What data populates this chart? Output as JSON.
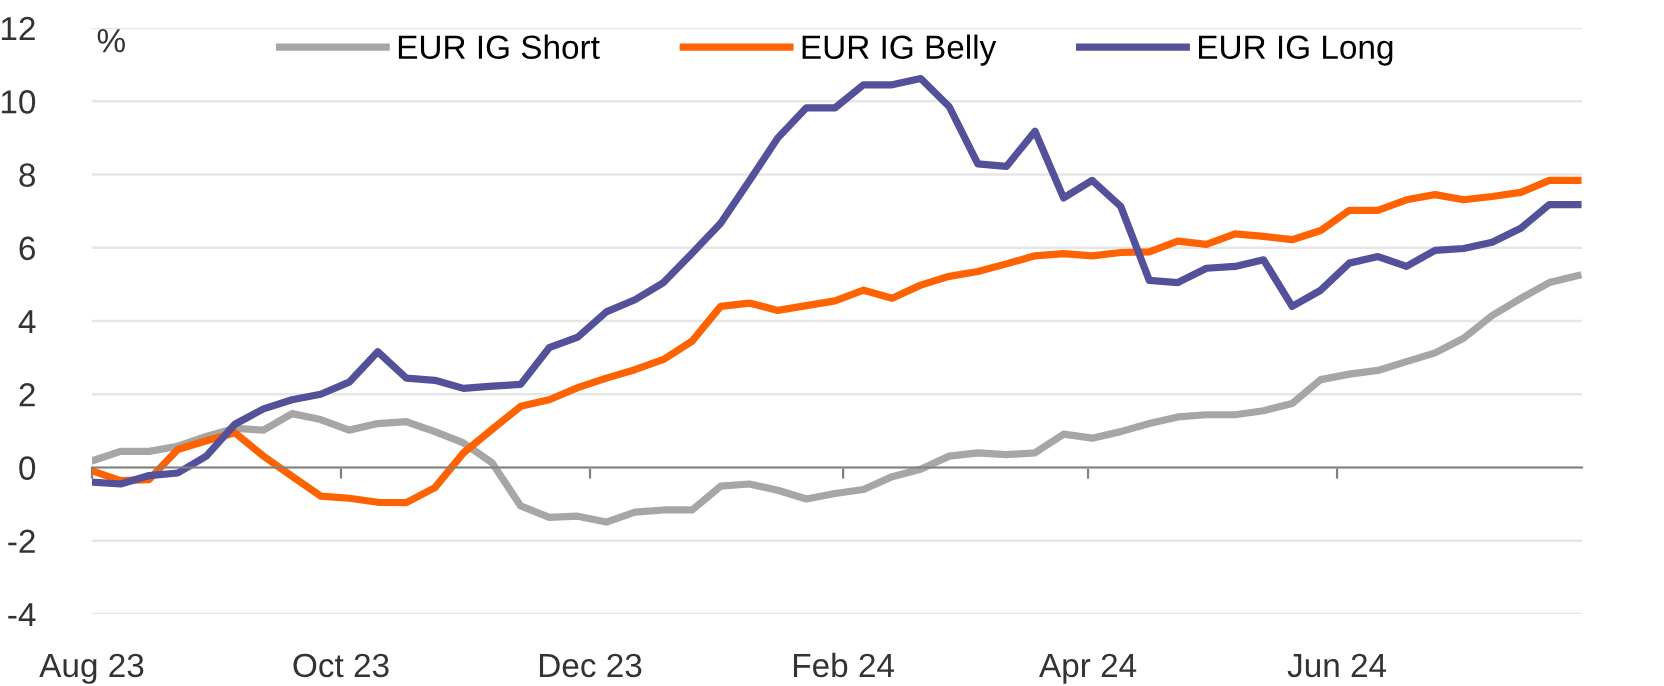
{
  "chart_data": {
    "type": "line",
    "x": [
      "2023-08-01",
      "2023-08-08",
      "2023-08-15",
      "2023-08-22",
      "2023-08-29",
      "2023-09-05",
      "2023-09-12",
      "2023-09-19",
      "2023-09-26",
      "2023-10-03",
      "2023-10-10",
      "2023-10-17",
      "2023-10-24",
      "2023-10-31",
      "2023-11-07",
      "2023-11-14",
      "2023-11-21",
      "2023-11-28",
      "2023-12-05",
      "2023-12-12",
      "2023-12-19",
      "2023-12-26",
      "2024-01-02",
      "2024-01-09",
      "2024-01-16",
      "2024-01-23",
      "2024-01-30",
      "2024-02-06",
      "2024-02-13",
      "2024-02-20",
      "2024-02-27",
      "2024-03-05",
      "2024-03-12",
      "2024-03-19",
      "2024-03-26",
      "2024-04-02",
      "2024-04-09",
      "2024-04-16",
      "2024-04-23",
      "2024-04-30",
      "2024-05-07",
      "2024-05-14",
      "2024-05-21",
      "2024-05-28",
      "2024-06-04",
      "2024-06-11",
      "2024-06-18",
      "2024-06-25",
      "2024-07-02",
      "2024-07-09",
      "2024-07-16",
      "2024-07-23",
      "2024-07-30"
    ],
    "series": [
      {
        "name": "EUR IG Short",
        "color": "#a6a6a6",
        "values": [
          0.18,
          0.44,
          0.44,
          0.58,
          0.85,
          1.07,
          1.02,
          1.47,
          1.31,
          1.02,
          1.2,
          1.25,
          0.98,
          0.67,
          0.13,
          -1.05,
          -1.36,
          -1.33,
          -1.49,
          -1.22,
          -1.16,
          -1.16,
          -0.51,
          -0.45,
          -0.62,
          -0.86,
          -0.71,
          -0.6,
          -0.25,
          -0.05,
          0.31,
          0.4,
          0.35,
          0.4,
          0.91,
          0.8,
          0.98,
          1.2,
          1.38,
          1.44,
          1.44,
          1.55,
          1.75,
          2.4,
          2.55,
          2.65,
          2.89,
          3.13,
          3.53,
          4.15,
          4.62,
          5.05,
          5.24
        ]
      },
      {
        "name": "EUR IG Belly",
        "color": "#ff6200",
        "values": [
          -0.09,
          -0.36,
          -0.33,
          0.49,
          0.73,
          0.95,
          0.31,
          -0.24,
          -0.78,
          -0.84,
          -0.95,
          -0.96,
          -0.55,
          0.4,
          1.04,
          1.67,
          1.85,
          2.18,
          2.44,
          2.67,
          2.95,
          3.45,
          4.4,
          4.49,
          4.29,
          4.42,
          4.55,
          4.84,
          4.62,
          4.98,
          5.22,
          5.35,
          5.56,
          5.78,
          5.84,
          5.78,
          5.87,
          5.89,
          6.18,
          6.09,
          6.38,
          6.31,
          6.22,
          6.47,
          7.02,
          7.02,
          7.31,
          7.45,
          7.31,
          7.4,
          7.51,
          7.84,
          7.84
        ]
      },
      {
        "name": "EUR IG Long",
        "color": "#525199",
        "values": [
          -0.4,
          -0.45,
          -0.22,
          -0.15,
          0.31,
          1.18,
          1.6,
          1.85,
          2.0,
          2.33,
          3.16,
          2.44,
          2.38,
          2.16,
          2.22,
          2.27,
          3.27,
          3.56,
          4.25,
          4.58,
          5.05,
          5.85,
          6.67,
          7.82,
          9.0,
          9.82,
          9.82,
          10.45,
          10.45,
          10.62,
          9.85,
          8.29,
          8.22,
          9.18,
          7.36,
          7.84,
          7.13,
          5.11,
          5.05,
          5.44,
          5.49,
          5.67,
          4.4,
          4.84,
          5.58,
          5.76,
          5.49,
          5.93,
          5.98,
          6.15,
          6.53,
          7.18,
          7.18
        ]
      }
    ],
    "ylabel": "%",
    "xlim": [
      "2023-08-01",
      "2024-07-31"
    ],
    "xticks": [
      {
        "value": "2023-08-01",
        "label": "Aug 23"
      },
      {
        "value": "2023-10-01",
        "label": "Oct 23"
      },
      {
        "value": "2023-12-01",
        "label": "Dec 23"
      },
      {
        "value": "2024-02-01",
        "label": "Feb 24"
      },
      {
        "value": "2024-04-01",
        "label": "Apr 24"
      },
      {
        "value": "2024-06-01",
        "label": "Jun 24"
      }
    ],
    "ylim": [
      -4,
      12
    ],
    "yticks": [
      -4,
      -2,
      0,
      2,
      4,
      6,
      8,
      10,
      12
    ],
    "grid": "y",
    "legend": "top",
    "marker": "none",
    "line_style": "solid"
  }
}
